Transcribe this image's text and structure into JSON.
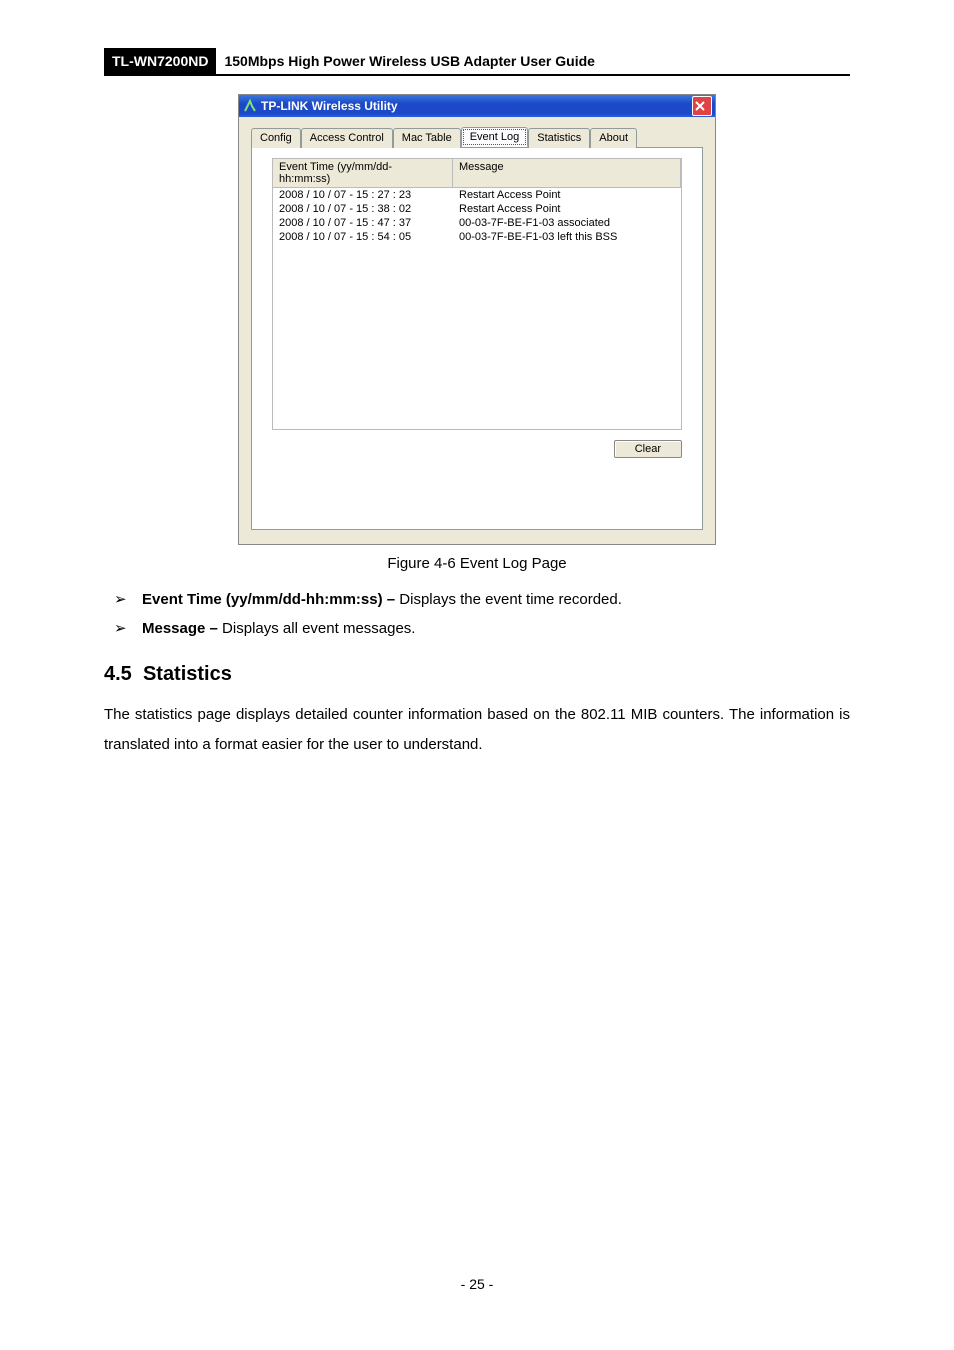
{
  "header": {
    "model": "TL-WN7200ND",
    "title": "150Mbps High Power Wireless USB Adapter User Guide"
  },
  "window": {
    "title": "TP-LINK Wireless Utility",
    "tabs": [
      "Config",
      "Access Control",
      "Mac Table",
      "Event Log",
      "Statistics",
      "About"
    ],
    "selected_tab_index": 3,
    "columns": [
      "Event Time (yy/mm/dd- hh:mm:ss)",
      "Message"
    ],
    "rows": [
      [
        "2008 / 10 / 07 - 15 : 27 : 23",
        "Restart Access Point"
      ],
      [
        "2008 / 10 / 07 - 15 : 38 : 02",
        "Restart Access Point"
      ],
      [
        "2008 / 10 / 07 - 15 : 47 : 37",
        "00-03-7F-BE-F1-03 associated"
      ],
      [
        "2008 / 10 / 07 - 15 : 54 : 05",
        "00-03-7F-BE-F1-03 left this BSS"
      ]
    ],
    "clear_label": "Clear",
    "colors": {
      "titlebar_start": "#3b77dd",
      "titlebar_end": "#1b49c8",
      "body": "#ece9d8",
      "close": "#e04343"
    }
  },
  "caption": "Figure 4-6 Event Log Page",
  "bullets": [
    {
      "term": "Event Time (yy/mm/dd-hh:mm:ss) –",
      "desc": " Displays the event time recorded."
    },
    {
      "term": "Message –",
      "desc": " Displays all event messages."
    }
  ],
  "section": {
    "number": "4.5",
    "title": "Statistics"
  },
  "paragraph": "The statistics page displays detailed counter information based on the 802.11 MIB counters. The information is translated into a format easier for the user to understand.",
  "page_number": "- 25 -"
}
